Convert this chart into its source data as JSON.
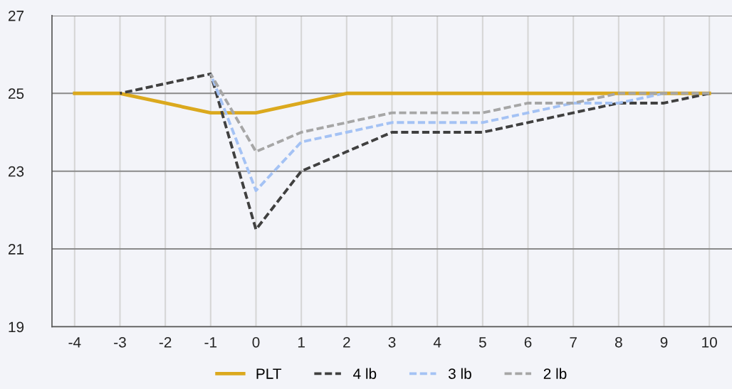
{
  "chart_data": {
    "type": "line",
    "x": [
      -4,
      -3,
      -2,
      -1,
      0,
      1,
      2,
      3,
      4,
      5,
      6,
      7,
      8,
      9,
      10
    ],
    "series": [
      {
        "name": "PLT",
        "color": "#dba91e",
        "line_style": "solid",
        "values": [
          25,
          25,
          24.75,
          24.5,
          24.5,
          24.75,
          25,
          25,
          25,
          25,
          25,
          25,
          25,
          25,
          25
        ]
      },
      {
        "name": "4 lb",
        "color": "#404040",
        "line_style": "dashed",
        "values": [
          null,
          25,
          25.25,
          25.5,
          21.5,
          23,
          23.5,
          24,
          24,
          24,
          24.25,
          24.5,
          24.75,
          24.75,
          25
        ]
      },
      {
        "name": "3 lb",
        "color": "#a4c2f4",
        "line_style": "dashed",
        "values": [
          null,
          null,
          null,
          25.5,
          22.5,
          23.75,
          24,
          24.25,
          24.25,
          24.25,
          24.5,
          24.75,
          24.75,
          25,
          null
        ]
      },
      {
        "name": "2 lb",
        "color": "#a6a6a6",
        "line_style": "dashed",
        "values": [
          null,
          null,
          null,
          25.5,
          23.5,
          24,
          24.25,
          24.5,
          24.5,
          24.5,
          24.75,
          24.75,
          25,
          25,
          25
        ]
      }
    ],
    "xlim": [
      -4.5,
      10.5
    ],
    "xticks": [
      -4,
      -3,
      -2,
      -1,
      0,
      1,
      2,
      3,
      4,
      5,
      6,
      7,
      8,
      9,
      10
    ],
    "ylim": [
      19,
      27
    ],
    "yticks": [
      19,
      21,
      23,
      25,
      27
    ],
    "grid": true,
    "legend": "bottom",
    "marker": "none"
  }
}
